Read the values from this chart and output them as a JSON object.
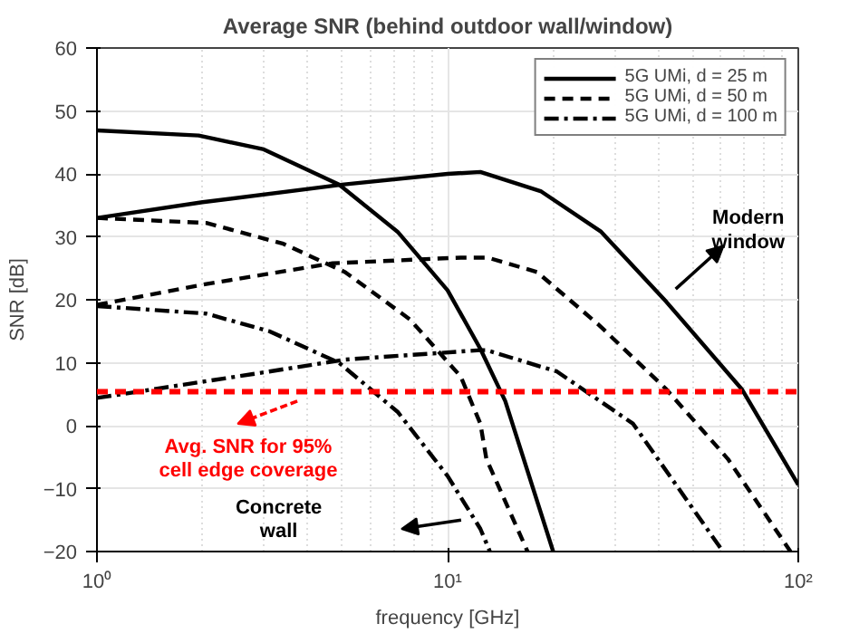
{
  "chart_data": {
    "type": "line",
    "title": "Average SNR (behind outdoor wall/window)",
    "xlabel": "frequency [GHz]",
    "ylabel": "SNR [dB]",
    "log": "x",
    "xlim": [
      1,
      100
    ],
    "xticks": [
      {
        "value": 1,
        "label": "10⁰"
      },
      {
        "value": 10,
        "label": "10¹"
      },
      {
        "value": 100,
        "label": "10²"
      }
    ],
    "ylim": [
      -20,
      60
    ],
    "yticks": [
      -20,
      -10,
      0,
      10,
      20,
      30,
      40,
      50,
      60
    ],
    "grid": true,
    "legend": "top right",
    "marker": "none",
    "series": [
      {
        "name": "5G UMi, d = 25 m",
        "color": "#000000",
        "line_style": "solid",
        "x": [
          1,
          2,
          5,
          10,
          12.4,
          18.5,
          27.4,
          42,
          69,
          100
        ],
        "values": [
          33,
          35.5,
          38.3,
          40,
          40.3,
          37.2,
          30.8,
          19.7,
          5.8,
          -9.4
        ]
      },
      {
        "name": "5G UMi, d = 50 m",
        "color": "#000000",
        "line_style": "dashed",
        "x": [
          1,
          2.05,
          4.7,
          10.9,
          13,
          18,
          27,
          42,
          63,
          95
        ],
        "values": [
          19.2,
          22.5,
          25.8,
          26.7,
          26.7,
          24.4,
          16,
          5.8,
          -5.3,
          -20
        ]
      },
      {
        "name": "5G UMi, d = 100 m",
        "color": "#000000",
        "line_style": "dashdot",
        "x": [
          1,
          3.1,
          5.1,
          12.4,
          12.9,
          20.5,
          33.8,
          61
        ],
        "values": [
          4.4,
          8.6,
          10.5,
          12,
          12,
          8.6,
          0.3,
          -20
        ]
      },
      {
        "color": "#000000",
        "line_style": "solid",
        "x": [
          1,
          1.95,
          2.99,
          4.9,
          7.2,
          10,
          12.4,
          14.6,
          20
        ],
        "values": [
          46.9,
          46.1,
          43.9,
          38.3,
          30.8,
          21.5,
          12.2,
          3.9,
          -20
        ]
      },
      {
        "color": "#000000",
        "line_style": "dashed",
        "x": [
          1,
          2.05,
          3.4,
          5.1,
          7.8,
          10.9,
          12.4,
          12.9,
          16.9
        ],
        "values": [
          33,
          32.2,
          28.9,
          24.4,
          16.9,
          7.8,
          0.3,
          -5.3,
          -20
        ]
      },
      {
        "color": "#000000",
        "line_style": "dashdot",
        "x": [
          1,
          2.05,
          3.1,
          4.9,
          7.2,
          10,
          12.4,
          13.2
        ],
        "values": [
          19,
          17.8,
          15,
          10,
          2.2,
          -8,
          -16.4,
          -20
        ]
      }
    ],
    "ref_lines": [
      {
        "axis": "y",
        "value": 5.4,
        "color": "#ff0000",
        "line_style": "dashed"
      }
    ],
    "annotations": [
      "Modern\nwindow",
      "Concrete\nwall",
      "Avg. SNR for 95%\ncell edge coverage"
    ]
  }
}
